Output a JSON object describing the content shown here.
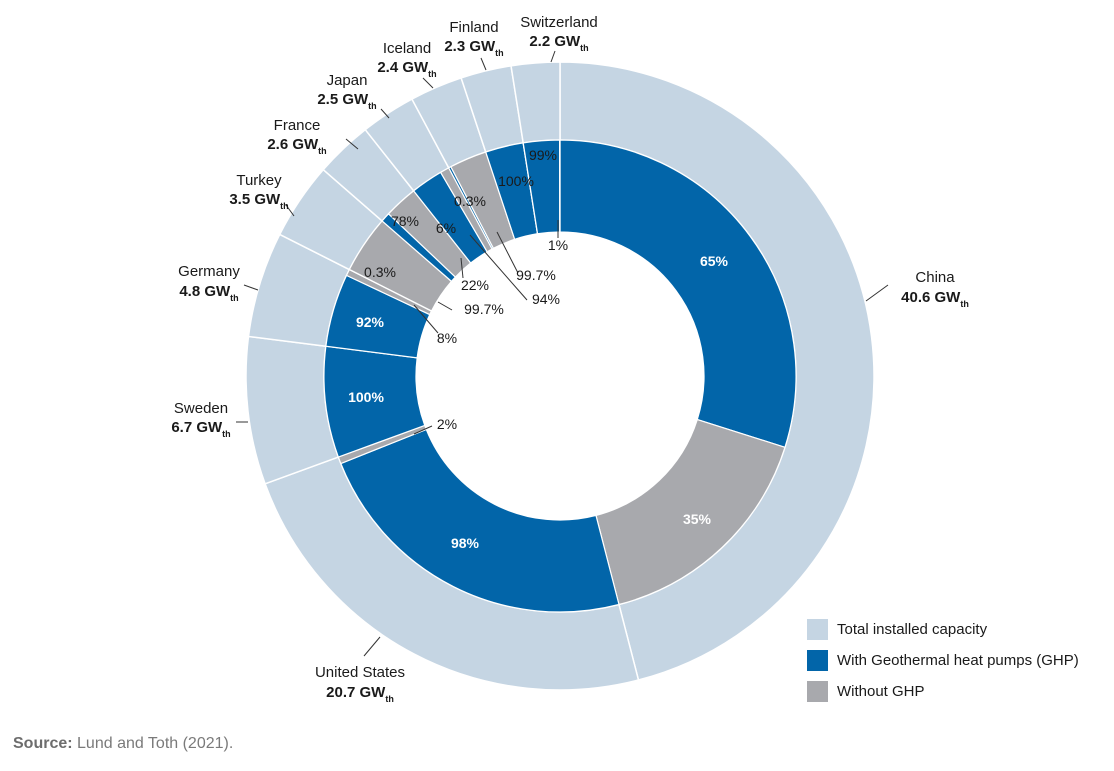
{
  "chart_data": {
    "type": "pie",
    "title": "",
    "unit_subscript": "th",
    "series": [
      {
        "name": "Total installed capacity",
        "unit": "GW",
        "categories": [
          "China",
          "United States",
          "Sweden",
          "Germany",
          "Turkey",
          "France",
          "Japan",
          "Iceland",
          "Finland",
          "Switzerland"
        ],
        "values": [
          40.6,
          20.7,
          6.7,
          4.8,
          3.5,
          2.6,
          2.5,
          2.4,
          2.3,
          2.2
        ],
        "labels": [
          "40.6 GW",
          "20.7 GW",
          "6.7 GW",
          "4.8 GW",
          "3.5 GW",
          "2.6 GW",
          "2.5 GW",
          "2.4 GW",
          "2.3 GW",
          "2.2 GW"
        ]
      },
      {
        "name": "With Geothermal heat pumps (GHP)",
        "percent_labels": [
          "65%",
          "98%",
          "100%",
          "92%",
          "0.3%",
          "22%",
          "78%",
          "6%",
          "100%",
          "99%"
        ]
      },
      {
        "name": "Without GHP",
        "percent_labels": [
          "35%",
          "2%",
          "",
          "8%",
          "99.7%",
          "78%",
          "22%",
          "94%",
          "0.3%",
          "1%"
        ]
      }
    ],
    "inner_ring_percentages": {
      "China": {
        "with": 65,
        "without": 35
      },
      "United States": {
        "with": 98,
        "without": 2
      },
      "Sweden": {
        "with": 100,
        "without": 0
      },
      "Germany": {
        "with": 92,
        "without": 8
      },
      "Turkey": {
        "with": 0.3,
        "without": 99.7
      },
      "France": {
        "with": 22,
        "without": 78
      },
      "Japan": {
        "with": 78,
        "without": 22
      },
      "Iceland": {
        "with": 6,
        "without": 94
      },
      "Finland": {
        "with": 100,
        "without": 0.3
      },
      "Switzerland": {
        "with": 99,
        "without": 1
      }
    },
    "display_labels": {
      "China": {
        "with": "65%",
        "without": "35%"
      },
      "United States": {
        "with": "98%",
        "without": "2%"
      },
      "Sweden": {
        "with": "100%"
      },
      "Germany": {
        "with": "92%",
        "without": "8%"
      },
      "Turkey": {
        "with": "0.3%",
        "without": "99.7%"
      },
      "France": {
        "with": "22%",
        "without": "78%"
      },
      "Japan": {
        "with": "78%",
        "without": "22%"
      },
      "Iceland": {
        "with": "6%",
        "without": "94%"
      },
      "Finland": {
        "with": "100%",
        "without": "0.3%"
      },
      "Switzerland": {
        "with": "99%",
        "without": "1%"
      }
    },
    "colors": {
      "total": "#c5d5e3",
      "with": "#0265a9",
      "without": "#a8a9ad"
    },
    "legend_position": "bottom-right"
  },
  "legend": [
    {
      "label": "Total installed capacity",
      "color": "#c5d5e3"
    },
    {
      "label": "With Geothermal heat pumps (GHP)",
      "color": "#0265a9"
    },
    {
      "label": "Without GHP",
      "color": "#a8a9ad"
    }
  ],
  "source": {
    "prefix": "Source:",
    "text": " Lund and Toth (2021)."
  }
}
